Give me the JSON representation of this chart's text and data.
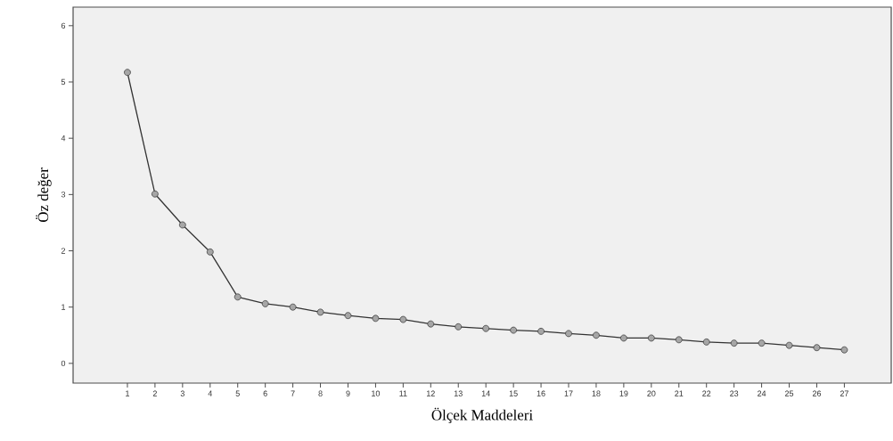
{
  "chart_data": {
    "type": "line",
    "xlabel": "Ölçek Maddeleri",
    "ylabel": "Öz değer",
    "categories": [
      "1",
      "2",
      "3",
      "4",
      "5",
      "6",
      "7",
      "8",
      "9",
      "10",
      "11",
      "12",
      "13",
      "14",
      "15",
      "16",
      "17",
      "18",
      "19",
      "20",
      "21",
      "22",
      "23",
      "24",
      "25",
      "26",
      "27"
    ],
    "values": [
      5.17,
      3.01,
      2.46,
      1.98,
      1.18,
      1.06,
      1.0,
      0.91,
      0.85,
      0.8,
      0.78,
      0.7,
      0.65,
      0.62,
      0.59,
      0.57,
      0.53,
      0.5,
      0.45,
      0.45,
      0.42,
      0.38,
      0.36,
      0.36,
      0.32,
      0.28,
      0.24
    ],
    "color": "#333333",
    "marker": "circle",
    "line_style": "solid",
    "ylim": [
      -0.35,
      6.33
    ],
    "yticks": [
      0,
      1,
      2,
      3,
      4,
      5,
      6
    ]
  }
}
